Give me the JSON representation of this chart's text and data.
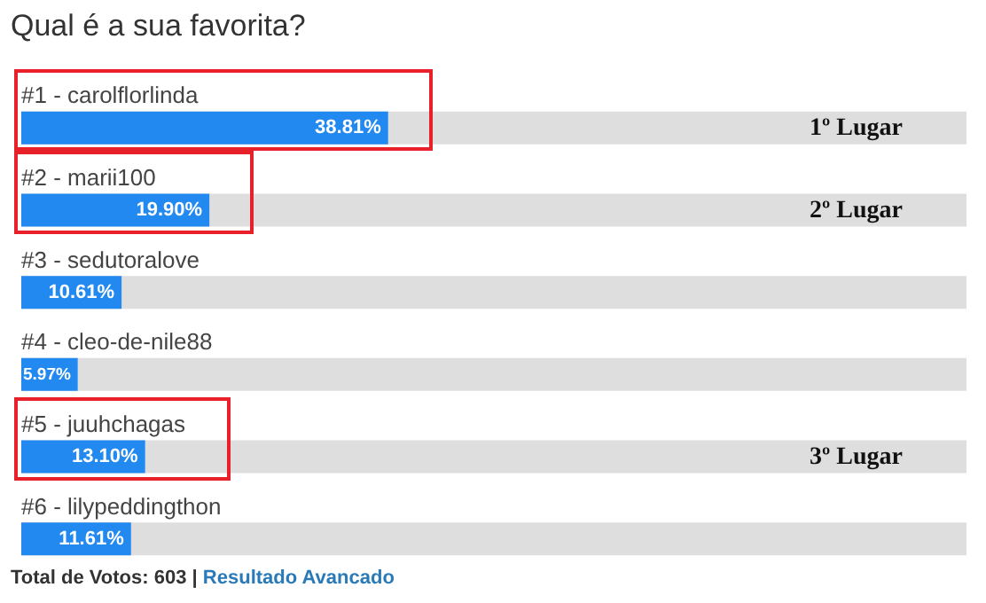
{
  "chart_data": {
    "type": "bar",
    "orientation": "horizontal",
    "title": "Qual é a sua favorita?",
    "categories": [
      "#1 - carolflorlinda",
      "#2 - marii100",
      "#3 - sedutoralove",
      "#4 - cleo-de-nile88",
      "#5 - juuhchagas",
      "#6 - lilypeddingthon"
    ],
    "values": [
      38.81,
      19.9,
      10.61,
      5.97,
      13.1,
      11.61
    ],
    "value_labels": [
      "38.81%",
      "19.90%",
      "10.61%",
      "5.97%",
      "13.10%",
      "11.61%"
    ],
    "color": "#2189ef",
    "xlim": [
      0,
      100
    ],
    "annotations": [
      "1º Lugar",
      "2º Lugar",
      "3º Lugar",
      "Total de Votos: 603 |",
      "Resultado Avancado"
    ]
  }
}
